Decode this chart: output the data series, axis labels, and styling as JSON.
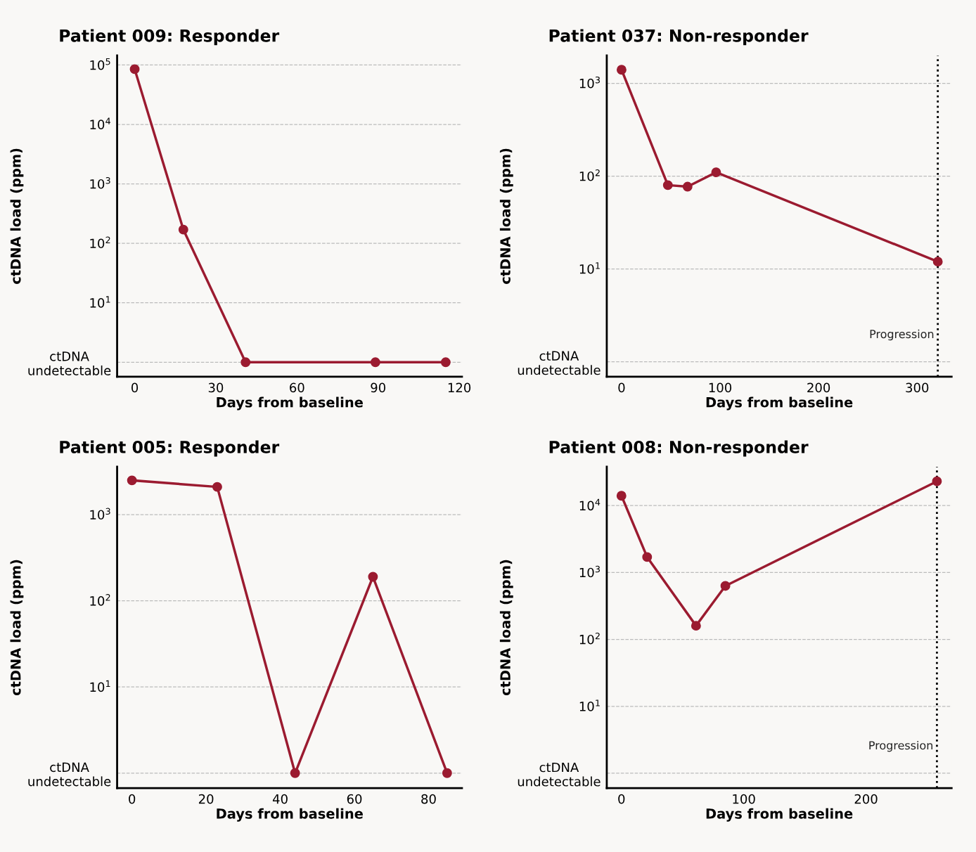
{
  "chart_data": [
    {
      "type": "line",
      "title": "Patient 009: Responder",
      "xlabel": "Days from baseline",
      "ylabel": "ctDNA load (ppm)",
      "log": "y",
      "grid": "y",
      "marker": "circle",
      "line_style": "solid",
      "xlim": [
        -6.5,
        121
      ],
      "xticks": [
        0,
        30,
        60,
        90,
        120
      ],
      "ylim": [
        0.57,
        145000
      ],
      "yticks": [
        {
          "value": 1,
          "label": "ctDNA\nundetectable"
        },
        {
          "value": 10,
          "label": "10$^{1}$"
        },
        {
          "value": 100,
          "label": "10$^{2}$"
        },
        {
          "value": 1000,
          "label": "10$^{3}$"
        },
        {
          "value": 10000,
          "label": "10$^{4}$"
        },
        {
          "value": 100000,
          "label": "10$^{5}$"
        }
      ],
      "series": [
        {
          "color": "#9b1b30",
          "x": [
            0,
            18,
            41,
            89,
            115
          ],
          "values": [
            85000,
            170,
            1,
            1,
            1
          ]
        }
      ]
    },
    {
      "type": "line",
      "title": "Patient 037: Non-responder",
      "xlabel": "Days from baseline",
      "ylabel": "ctDNA load (ppm)",
      "log": "y",
      "grid": "y",
      "marker": "circle",
      "line_style": "solid",
      "xlim": [
        -15,
        335
      ],
      "xticks": [
        0,
        100,
        200,
        300
      ],
      "ylim": [
        0.69,
        2000
      ],
      "yticks": [
        {
          "value": 1,
          "label": "ctDNA\nundetectable"
        },
        {
          "value": 10,
          "label": "10$^{1}$"
        },
        {
          "value": 100,
          "label": "10$^{2}$"
        },
        {
          "value": 1000,
          "label": "10$^{3}$"
        }
      ],
      "series": [
        {
          "color": "#9b1b30",
          "x": [
            0,
            47,
            67,
            96,
            321
          ],
          "values": [
            1400,
            80,
            77,
            110,
            12
          ]
        }
      ],
      "ref_lines": [
        {
          "axis": "x",
          "value": 321,
          "label": "Progression",
          "color": "#000000",
          "line_style": "dotted"
        }
      ]
    },
    {
      "type": "line",
      "title": "Patient 005: Responder",
      "xlabel": "Days from baseline",
      "ylabel": "ctDNA load (ppm)",
      "log": "y",
      "grid": "y",
      "marker": "circle",
      "line_style": "solid",
      "xlim": [
        -4,
        89
      ],
      "xticks": [
        0,
        20,
        40,
        60,
        80
      ],
      "ylim": [
        0.67,
        3600
      ],
      "yticks": [
        {
          "value": 1,
          "label": "ctDNA\nundetectable"
        },
        {
          "value": 10,
          "label": "10$^{1}$"
        },
        {
          "value": 100,
          "label": "10$^{2}$"
        },
        {
          "value": 1000,
          "label": "10$^{3}$"
        }
      ],
      "series": [
        {
          "color": "#9b1b30",
          "x": [
            0,
            23,
            44,
            65,
            85
          ],
          "values": [
            2500,
            2100,
            1,
            190,
            1
          ]
        }
      ]
    },
    {
      "type": "line",
      "title": "Patient 008: Non-responder",
      "xlabel": "Days from baseline",
      "ylabel": "ctDNA load (ppm)",
      "log": "y",
      "grid": "y",
      "marker": "circle",
      "line_style": "solid",
      "xlim": [
        -12,
        270
      ],
      "xticks": [
        0,
        100,
        200
      ],
      "ylim": [
        0.6,
        38000
      ],
      "yticks": [
        {
          "value": 1,
          "label": "ctDNA\nundetectable"
        },
        {
          "value": 10,
          "label": "10$^{1}$"
        },
        {
          "value": 100,
          "label": "10$^{2}$"
        },
        {
          "value": 1000,
          "label": "10$^{3}$"
        },
        {
          "value": 10000,
          "label": "10$^{4}$"
        }
      ],
      "series": [
        {
          "color": "#9b1b30",
          "x": [
            0,
            21,
            61,
            85,
            258
          ],
          "values": [
            14000,
            1700,
            160,
            630,
            23000
          ]
        }
      ],
      "ref_lines": [
        {
          "axis": "x",
          "value": 258,
          "label": "Progression",
          "color": "#000000",
          "line_style": "dotted"
        }
      ]
    }
  ]
}
